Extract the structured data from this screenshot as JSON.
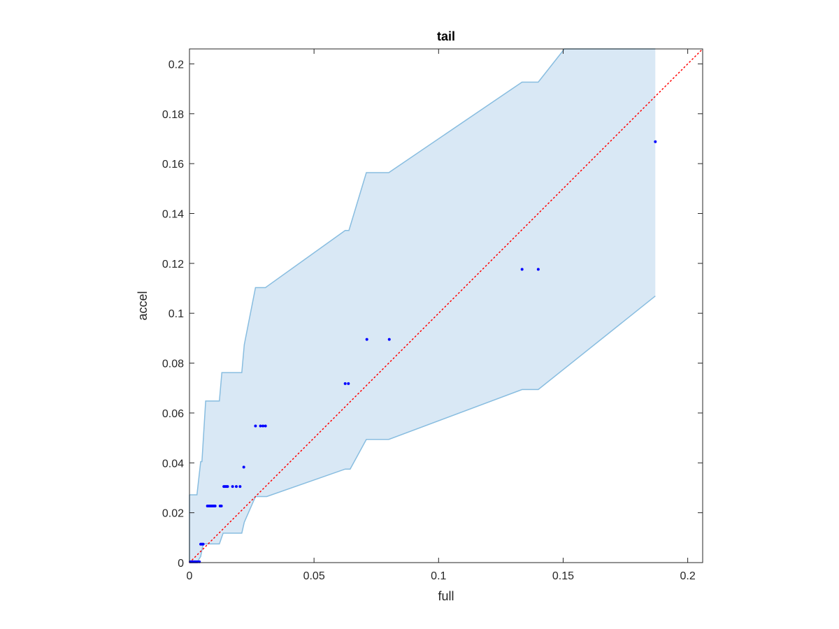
{
  "chart_data": {
    "type": "scatter",
    "title": "tail",
    "xlabel": "full",
    "ylabel": "accel",
    "xlim": [
      0,
      0.206
    ],
    "ylim": [
      0,
      0.206
    ],
    "xticks": [
      0,
      0.05,
      0.1,
      0.15,
      0.2
    ],
    "yticks": [
      0,
      0.02,
      0.04,
      0.06,
      0.08,
      0.1,
      0.12,
      0.14,
      0.16,
      0.18,
      0.2
    ],
    "xtick_labels": [
      "0",
      "0.05",
      "0.1",
      "0.15",
      "0.2"
    ],
    "ytick_labels": [
      "0",
      "0.02",
      "0.04",
      "0.06",
      "0.08",
      "0.1",
      "0.12",
      "0.14",
      "0.16",
      "0.18",
      "0.2"
    ],
    "grid": false,
    "band": {
      "upper": [
        [
          0,
          0.0272
        ],
        [
          0.003,
          0.0272
        ],
        [
          0.0045,
          0.0405
        ],
        [
          0.005,
          0.0405
        ],
        [
          0.0065,
          0.0648
        ],
        [
          0.012,
          0.0648
        ],
        [
          0.013,
          0.0762
        ],
        [
          0.021,
          0.0762
        ],
        [
          0.022,
          0.0874
        ],
        [
          0.0265,
          0.1103
        ],
        [
          0.0305,
          0.1103
        ],
        [
          0.0625,
          0.1332
        ],
        [
          0.064,
          0.1332
        ],
        [
          0.071,
          0.1564
        ],
        [
          0.08,
          0.1564
        ],
        [
          0.1335,
          0.1927
        ],
        [
          0.14,
          0.1927
        ],
        [
          0.1505,
          0.206
        ],
        [
          0.187,
          0.206
        ]
      ],
      "lower": [
        [
          0,
          0
        ],
        [
          0.003,
          0
        ],
        [
          0.0045,
          0.0025
        ],
        [
          0.0055,
          0.0075
        ],
        [
          0.012,
          0.0075
        ],
        [
          0.0135,
          0.0118
        ],
        [
          0.021,
          0.0118
        ],
        [
          0.022,
          0.0162
        ],
        [
          0.0265,
          0.0265
        ],
        [
          0.031,
          0.0265
        ],
        [
          0.0625,
          0.0375
        ],
        [
          0.0645,
          0.0375
        ],
        [
          0.071,
          0.0494
        ],
        [
          0.08,
          0.0494
        ],
        [
          0.1335,
          0.0694
        ],
        [
          0.14,
          0.0694
        ],
        [
          0.187,
          0.1069
        ]
      ],
      "fill": "#d9e8f5",
      "stroke": "#88bde0"
    },
    "reference_line": {
      "from": [
        0,
        0
      ],
      "to": [
        0.206,
        0.206
      ],
      "color": "#ff0000",
      "style": "dotted"
    },
    "points_color": "#0000ff",
    "points": [
      [
        0.0003,
        0.0003
      ],
      [
        0.0008,
        0.0003
      ],
      [
        0.0013,
        0.0003
      ],
      [
        0.0018,
        0.0003
      ],
      [
        0.0023,
        0.0003
      ],
      [
        0.0028,
        0.0003
      ],
      [
        0.0033,
        0.0003
      ],
      [
        0.004,
        0.0003
      ],
      [
        0.0045,
        0.0074
      ],
      [
        0.005,
        0.0074
      ],
      [
        0.0055,
        0.0074
      ],
      [
        0.0072,
        0.0227
      ],
      [
        0.0078,
        0.0227
      ],
      [
        0.0083,
        0.0227
      ],
      [
        0.0088,
        0.0227
      ],
      [
        0.0093,
        0.0227
      ],
      [
        0.0098,
        0.0227
      ],
      [
        0.0103,
        0.0227
      ],
      [
        0.0123,
        0.0227
      ],
      [
        0.0128,
        0.0227
      ],
      [
        0.0138,
        0.0305
      ],
      [
        0.0143,
        0.0305
      ],
      [
        0.0148,
        0.0305
      ],
      [
        0.0153,
        0.0305
      ],
      [
        0.0173,
        0.0305
      ],
      [
        0.0188,
        0.0305
      ],
      [
        0.0203,
        0.0305
      ],
      [
        0.0218,
        0.0383
      ],
      [
        0.0265,
        0.0548
      ],
      [
        0.0285,
        0.0548
      ],
      [
        0.0295,
        0.0548
      ],
      [
        0.0305,
        0.0548
      ],
      [
        0.0625,
        0.0718
      ],
      [
        0.0638,
        0.0718
      ],
      [
        0.0712,
        0.0895
      ],
      [
        0.0802,
        0.0895
      ],
      [
        0.1335,
        0.1176
      ],
      [
        0.14,
        0.1176
      ],
      [
        0.187,
        0.1688
      ]
    ]
  }
}
